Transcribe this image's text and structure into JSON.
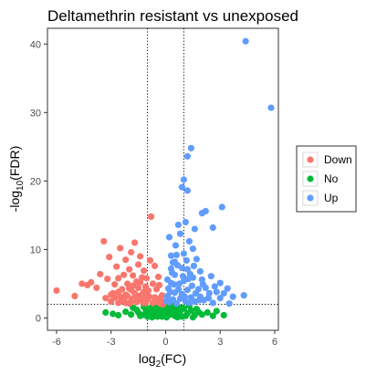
{
  "chart_data": {
    "type": "scatter",
    "title": "Deltamethrin resistant vs unexposed",
    "xlabel": {
      "prefix": "log",
      "sub": "2",
      "suffix": "(FC)"
    },
    "ylabel": {
      "prefix": "-log",
      "sub": "10",
      "suffix": "(FDR)"
    },
    "xlim": [
      -6.5,
      6.2
    ],
    "ylim": [
      -1.8,
      42.3
    ],
    "xticks": [
      -6,
      -3,
      0,
      3,
      6
    ],
    "yticks": [
      0,
      10,
      20,
      30,
      40
    ],
    "x_tick_labels": [
      "-6",
      "-3",
      "0",
      "3",
      "6"
    ],
    "y_tick_labels": [
      "0",
      "10",
      "20",
      "30",
      "40"
    ],
    "grid": false,
    "legend_position": "right",
    "thresholds": {
      "vlines": [
        -1,
        1
      ],
      "hline": 2
    },
    "series": [
      {
        "name": "Down",
        "color": "#F8766D",
        "points": [
          [
            -6.0,
            4.0
          ],
          [
            -5.0,
            3.2
          ],
          [
            -4.6,
            5.0
          ],
          [
            -4.3,
            4.8
          ],
          [
            -4.1,
            5.2
          ],
          [
            -3.8,
            4.4
          ],
          [
            -3.6,
            6.4
          ],
          [
            -3.4,
            11.2
          ],
          [
            -3.3,
            2.9
          ],
          [
            -3.2,
            5.7
          ],
          [
            -3.1,
            8.9
          ],
          [
            -3.0,
            2.4
          ],
          [
            -2.9,
            3.6
          ],
          [
            -2.8,
            4.9
          ],
          [
            -2.7,
            7.5
          ],
          [
            -2.6,
            2.2
          ],
          [
            -2.6,
            5.8
          ],
          [
            -2.5,
            3.1
          ],
          [
            -2.5,
            10.2
          ],
          [
            -2.4,
            4.2
          ],
          [
            -2.3,
            6.3
          ],
          [
            -2.3,
            2.6
          ],
          [
            -2.2,
            8.5
          ],
          [
            -2.2,
            3.4
          ],
          [
            -2.1,
            5.0
          ],
          [
            -2.0,
            2.1
          ],
          [
            -2.0,
            7.1
          ],
          [
            -1.9,
            4.1
          ],
          [
            -1.9,
            9.6
          ],
          [
            -1.8,
            2.8
          ],
          [
            -1.8,
            6.2
          ],
          [
            -1.7,
            3.6
          ],
          [
            -1.7,
            11.0
          ],
          [
            -1.6,
            5.3
          ],
          [
            -1.6,
            2.3
          ],
          [
            -1.5,
            4.4
          ],
          [
            -1.5,
            7.8
          ],
          [
            -1.4,
            3.1
          ],
          [
            -1.4,
            9.0
          ],
          [
            -1.3,
            2.5
          ],
          [
            -1.3,
            5.9
          ],
          [
            -1.2,
            3.8
          ],
          [
            -1.2,
            6.9
          ],
          [
            -1.1,
            2.2
          ],
          [
            -1.1,
            4.6
          ],
          [
            -2.8,
            3.0
          ],
          [
            -2.4,
            2.5
          ],
          [
            -2.1,
            3.2
          ],
          [
            -1.9,
            2.4
          ],
          [
            -1.7,
            2.9
          ],
          [
            -1.5,
            2.6
          ],
          [
            -1.3,
            3.4
          ],
          [
            -1.2,
            2.2
          ],
          [
            -2.2,
            2.2
          ],
          [
            -1.6,
            3.3
          ],
          [
            -2.0,
            4.3
          ],
          [
            -1.4,
            5.2
          ],
          [
            -1.1,
            3.3
          ],
          [
            -2.6,
            3.8
          ],
          [
            -3.0,
            3.4
          ],
          [
            -1.8,
            4.7
          ],
          [
            -1.0,
            2.7
          ],
          [
            -0.8,
            14.8
          ],
          [
            -0.9,
            3.1
          ],
          [
            -0.7,
            2.2
          ],
          [
            -0.6,
            3.0
          ],
          [
            -0.5,
            2.4
          ],
          [
            -0.4,
            2.8
          ],
          [
            -0.3,
            2.1
          ],
          [
            -0.5,
            4.2
          ],
          [
            -0.7,
            5.0
          ],
          [
            -0.4,
            6.0
          ],
          [
            -0.2,
            3.3
          ],
          [
            -0.15,
            2.0
          ],
          [
            -0.85,
            8.4
          ],
          [
            -0.6,
            7.6
          ],
          [
            -0.35,
            4.8
          ],
          [
            -0.25,
            2.6
          ],
          [
            -1.05,
            5.8
          ],
          [
            -0.95,
            4.0
          ]
        ]
      },
      {
        "name": "No",
        "color": "#00BA38",
        "points": [
          [
            -1.9,
            0.5
          ],
          [
            -1.6,
            1.2
          ],
          [
            -1.4,
            0.3
          ],
          [
            -1.2,
            1.6
          ],
          [
            -1.1,
            0.8
          ],
          [
            -1.0,
            0.2
          ],
          [
            -0.9,
            1.4
          ],
          [
            -0.8,
            0.6
          ],
          [
            -0.7,
            1.8
          ],
          [
            -0.6,
            0.3
          ],
          [
            -0.5,
            1.1
          ],
          [
            -0.4,
            0.7
          ],
          [
            -0.3,
            1.5
          ],
          [
            -0.2,
            0.2
          ],
          [
            -0.1,
            0.9
          ],
          [
            0.0,
            1.3
          ],
          [
            0.1,
            0.4
          ],
          [
            0.2,
            1.7
          ],
          [
            0.3,
            0.8
          ],
          [
            0.4,
            1.2
          ],
          [
            0.5,
            0.3
          ],
          [
            0.6,
            1.6
          ],
          [
            0.7,
            0.6
          ],
          [
            0.8,
            1.0
          ],
          [
            0.9,
            0.2
          ],
          [
            1.0,
            1.4
          ],
          [
            1.2,
            0.7
          ],
          [
            1.4,
            1.1
          ],
          [
            1.6,
            0.4
          ],
          [
            1.8,
            0.9
          ],
          [
            2.0,
            0.5
          ],
          [
            2.3,
            0.8
          ],
          [
            2.6,
            0.3
          ],
          [
            3.2,
            0.4
          ],
          [
            -2.2,
            0.9
          ],
          [
            -2.6,
            0.4
          ],
          [
            -3.3,
            0.8
          ],
          [
            -1.3,
            0.4
          ],
          [
            -0.95,
            1.0
          ],
          [
            -0.75,
            0.1
          ],
          [
            -0.55,
            1.9
          ],
          [
            -0.35,
            0.4
          ],
          [
            -0.15,
            1.6
          ],
          [
            0.05,
            0.1
          ],
          [
            0.25,
            0.5
          ],
          [
            0.45,
            1.9
          ],
          [
            0.65,
            0.1
          ],
          [
            0.85,
            1.5
          ],
          [
            1.1,
            0.3
          ],
          [
            1.3,
            1.8
          ],
          [
            1.5,
            0.1
          ],
          [
            1.7,
            1.3
          ],
          [
            -1.5,
            0.8
          ],
          [
            -1.8,
            1.5
          ],
          [
            -0.65,
            0.9
          ],
          [
            0.15,
            1.0
          ],
          [
            0.55,
            0.9
          ],
          [
            -2.9,
            0.6
          ],
          [
            2.8,
            1.0
          ],
          [
            -0.45,
            0.2
          ]
        ]
      },
      {
        "name": "Up",
        "color": "#619CFF",
        "points": [
          [
            4.4,
            40.4
          ],
          [
            5.8,
            30.7
          ],
          [
            1.4,
            24.8
          ],
          [
            1.2,
            23.6
          ],
          [
            1.0,
            20.2
          ],
          [
            1.2,
            18.6
          ],
          [
            0.9,
            19.1
          ],
          [
            2.2,
            15.6
          ],
          [
            2.0,
            15.3
          ],
          [
            3.1,
            16.2
          ],
          [
            1.1,
            14.0
          ],
          [
            1.6,
            13.0
          ],
          [
            2.6,
            13.2
          ],
          [
            0.8,
            12.3
          ],
          [
            1.3,
            11.2
          ],
          [
            1.5,
            10.1
          ],
          [
            1.0,
            9.4
          ],
          [
            0.2,
            11.8
          ],
          [
            0.4,
            8.1
          ],
          [
            0.6,
            9.2
          ],
          [
            0.9,
            7.3
          ],
          [
            1.2,
            7.1
          ],
          [
            1.7,
            8.6
          ],
          [
            2.0,
            5.6
          ],
          [
            2.5,
            6.1
          ],
          [
            3.0,
            5.1
          ],
          [
            3.4,
            4.3
          ],
          [
            3.7,
            3.1
          ],
          [
            4.3,
            3.3
          ],
          [
            0.3,
            5.1
          ],
          [
            0.5,
            6.3
          ],
          [
            0.7,
            4.2
          ],
          [
            0.9,
            3.5
          ],
          [
            1.0,
            5.4
          ],
          [
            1.2,
            4.1
          ],
          [
            1.4,
            3.0
          ],
          [
            1.5,
            5.9
          ],
          [
            1.6,
            2.4
          ],
          [
            1.8,
            4.2
          ],
          [
            1.9,
            3.1
          ],
          [
            2.1,
            2.6
          ],
          [
            2.2,
            4.4
          ],
          [
            2.4,
            3.6
          ],
          [
            2.6,
            2.2
          ],
          [
            2.8,
            3.8
          ],
          [
            3.0,
            2.9
          ],
          [
            3.2,
            3.6
          ],
          [
            3.5,
            2.1
          ],
          [
            0.1,
            3.2
          ],
          [
            0.2,
            2.3
          ],
          [
            0.3,
            7.2
          ],
          [
            0.4,
            2.7
          ],
          [
            0.5,
            3.7
          ],
          [
            0.6,
            2.1
          ],
          [
            0.8,
            2.8
          ],
          [
            1.1,
            2.4
          ],
          [
            1.3,
            2.2
          ],
          [
            0.15,
            4.3
          ],
          [
            0.35,
            6.6
          ],
          [
            0.55,
            10.6
          ],
          [
            0.75,
            5.0
          ],
          [
            0.95,
            6.1
          ],
          [
            1.15,
            8.4
          ],
          [
            1.35,
            6.4
          ],
          [
            0.05,
            2.5
          ],
          [
            0.25,
            3.8
          ],
          [
            0.45,
            4.9
          ],
          [
            0.65,
            7.7
          ],
          [
            0.85,
            3.0
          ],
          [
            1.05,
            3.1
          ],
          [
            1.25,
            5.7
          ],
          [
            1.45,
            4.7
          ],
          [
            1.65,
            3.6
          ],
          [
            1.85,
            2.6
          ],
          [
            2.05,
            4.9
          ],
          [
            2.35,
            2.9
          ],
          [
            2.7,
            4.6
          ],
          [
            0.1,
            5.6
          ],
          [
            0.3,
            9.1
          ],
          [
            0.5,
            8.2
          ],
          [
            1.55,
            7.6
          ],
          [
            1.9,
            6.8
          ],
          [
            0.7,
            13.6
          ]
        ]
      }
    ]
  }
}
